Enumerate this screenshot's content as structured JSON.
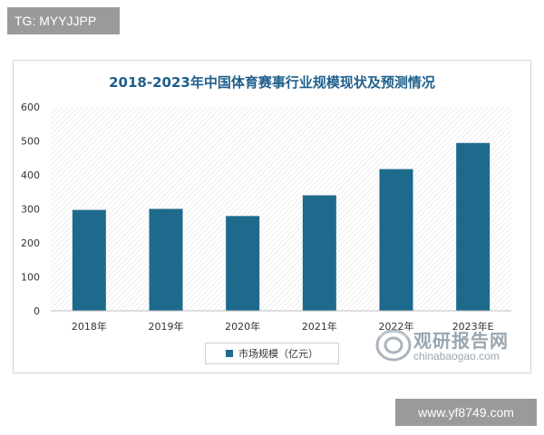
{
  "overlay": {
    "tg_label": "TG: MYYJJPP",
    "site_label": "www.yf8749.com"
  },
  "watermark": {
    "brand": "观研报告网",
    "url": "chinabaogao.com"
  },
  "chart_data": {
    "type": "bar",
    "title": "2018-2023年中国体育赛事行业规模现状及预测情况",
    "categories": [
      "2018年",
      "2019年",
      "2020年",
      "2021年",
      "2022年",
      "2023年E"
    ],
    "series": [
      {
        "name": "市场规模（亿元）",
        "values": [
          297,
          300,
          279,
          340,
          417,
          494
        ]
      }
    ],
    "ylim": [
      0,
      600
    ],
    "yticks": [
      0,
      100,
      200,
      300,
      400,
      500,
      600
    ],
    "xlabel": "",
    "ylabel": "",
    "grid": "diagonal-hatch background",
    "legend_position": "bottom-center",
    "colors": {
      "bar": "#1e6a8c",
      "title": "#1f5f8b"
    }
  }
}
